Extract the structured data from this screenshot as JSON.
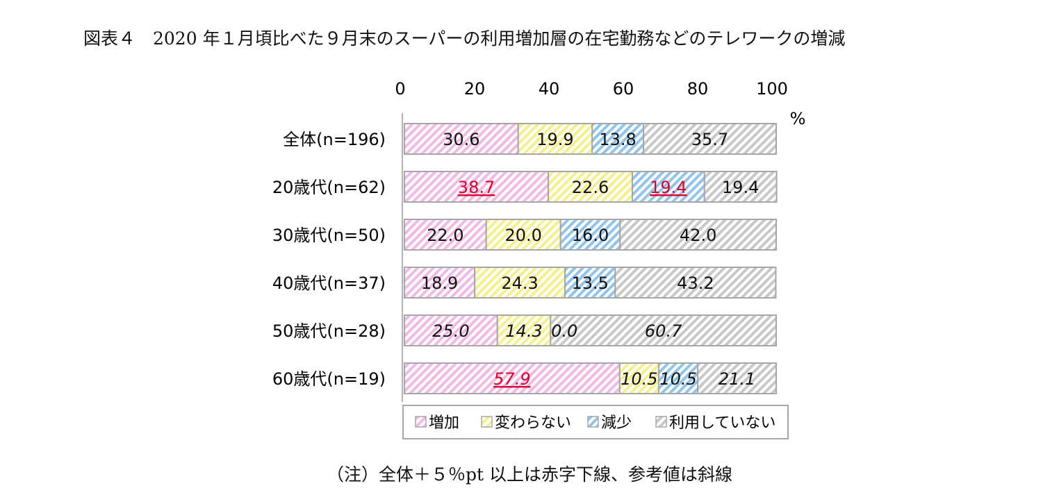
{
  "title": "図表４　2020 年１月頃比べた９月末のスーパーの利用増加層の在宅勤務などのテレワークの増減",
  "note": "（注）全体＋５％pt 以上は赤字下線、参考値は斜線",
  "chart_data": {
    "type": "bar",
    "orientation": "horizontal",
    "stacked": true,
    "xlim": [
      0,
      100
    ],
    "xticks": [
      "0",
      "20",
      "40",
      "60",
      "80",
      "100"
    ],
    "xunit": "%",
    "categories": [
      "全体(n=196)",
      "20歳代(n=62)",
      "30歳代(n=50)",
      "40歳代(n=37)",
      "50歳代(n=28)",
      "60歳代(n=19)"
    ],
    "series": [
      {
        "name": "増加",
        "color": "#f2b8e6",
        "values": [
          30.6,
          38.7,
          22.0,
          18.9,
          25.0,
          57.9
        ],
        "labels": [
          "30.6",
          "38.7",
          "22.0",
          "18.9",
          "25.0",
          "57.9"
        ]
      },
      {
        "name": "変わらない",
        "color": "#f5f08a",
        "values": [
          19.9,
          22.6,
          20.0,
          24.3,
          14.3,
          10.5
        ],
        "labels": [
          "19.9",
          "22.6",
          "20.0",
          "24.3",
          "14.3",
          "10.5"
        ]
      },
      {
        "name": "減少",
        "color": "#8fc4ec",
        "values": [
          13.8,
          19.4,
          16.0,
          13.5,
          0.0,
          10.5
        ],
        "labels": [
          "13.8",
          "19.4",
          "16.0",
          "13.5",
          "0.0",
          "10.5"
        ]
      },
      {
        "name": "利用していない",
        "color": "#c8c8c8",
        "values": [
          35.7,
          19.4,
          42.0,
          43.2,
          60.7,
          21.1
        ],
        "labels": [
          "35.7",
          "19.4",
          "42.0",
          "43.2",
          "60.7",
          "21.1"
        ]
      }
    ],
    "highlighted": [
      [
        1,
        0
      ],
      [
        1,
        2
      ],
      [
        5,
        0
      ]
    ],
    "reference_rows": [
      4,
      5
    ],
    "highlight_color": "#e0002a",
    "legend_position": "bottom"
  }
}
